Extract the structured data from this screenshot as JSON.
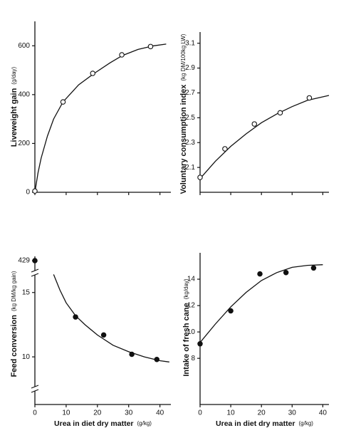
{
  "chart_data": [
    {
      "type": "scatter",
      "ylabel": "Liveweight gain",
      "ylabel_unit": "(g/day)",
      "marker": "open",
      "x": [
        0,
        9,
        18.5,
        27.8,
        37
      ],
      "values": [
        5,
        370,
        487,
        563,
        597
      ],
      "fit": {
        "x": [
          0,
          1,
          2,
          4,
          6,
          9,
          14,
          19,
          24,
          28,
          33,
          38,
          42
        ],
        "y": [
          0,
          80,
          140,
          230,
          300,
          370,
          440,
          487,
          530,
          560,
          585,
          600,
          607
        ]
      },
      "xlim": [
        0,
        43.5
      ],
      "ylim": [
        0,
        700
      ],
      "yticks": [
        0,
        200,
        400,
        600
      ],
      "xticks": [
        0,
        10,
        20,
        30,
        40
      ],
      "xtick_labels": false
    },
    {
      "type": "scatter",
      "ylabel": "Voluntary consumption index",
      "ylabel_unit": "(kg DM/100kg LW)",
      "marker": "open",
      "x": [
        0,
        8.1,
        17.7,
        26.1,
        35.6
      ],
      "values": [
        2.02,
        2.25,
        2.45,
        2.54,
        2.66
      ],
      "fit": {
        "x": [
          0,
          5,
          10,
          15,
          20,
          25,
          30,
          35,
          42
        ],
        "y": [
          2.01,
          2.15,
          2.27,
          2.37,
          2.46,
          2.53,
          2.59,
          2.64,
          2.68
        ]
      },
      "xlim": [
        0,
        42
      ],
      "ylim": [
        1.9,
        3.19
      ],
      "yticks": [
        2.1,
        2.3,
        2.5,
        2.7,
        2.9,
        3.1
      ],
      "xticks": [
        0,
        10,
        20,
        30,
        40
      ],
      "xtick_labels": false
    },
    {
      "type": "scatter",
      "ylabel": "Feed conversion",
      "ylabel_unit": "(kg DM/kg gain)",
      "marker": "filled",
      "axis_break": true,
      "x": [
        0,
        13,
        22,
        31,
        39
      ],
      "values": [
        429,
        13.1,
        11.7,
        10.2,
        9.8
      ],
      "fit": {
        "x": [
          6,
          8,
          10,
          13,
          16,
          20,
          25,
          30,
          35,
          40,
          43
        ],
        "y": [
          16.4,
          15.2,
          14.2,
          13.2,
          12.5,
          11.7,
          10.9,
          10.4,
          10.0,
          9.7,
          9.6
        ]
      },
      "xlim": [
        0,
        43.5
      ],
      "ylim": [
        6.3,
        16.7
      ],
      "yticks": [
        10,
        15,
        429
      ],
      "xticks": [
        0,
        10,
        20,
        30,
        40
      ],
      "xtick_labels": true,
      "xlabel": "Urea in diet dry matter",
      "xlabel_unit": "(g/kg)"
    },
    {
      "type": "scatter",
      "ylabel": "Intake of fresh cane",
      "ylabel_unit": "(kg/day)",
      "marker": "filled",
      "x": [
        0,
        10,
        19.5,
        28,
        37
      ],
      "values": [
        9.1,
        11.6,
        14.4,
        14.5,
        14.85
      ],
      "fit": {
        "x": [
          0,
          5,
          10,
          15,
          20,
          25,
          30,
          35,
          40
        ],
        "y": [
          9.2,
          10.6,
          11.9,
          13.0,
          13.9,
          14.5,
          14.9,
          15.05,
          15.1
        ]
      },
      "xlim": [
        0,
        42
      ],
      "ylim": [
        4.5,
        16
      ],
      "yticks": [
        8,
        10,
        12,
        14
      ],
      "xticks": [
        0,
        10,
        20,
        30,
        40
      ],
      "xtick_labels": true,
      "xlabel": "Urea in diet dry matter",
      "xlabel_unit": "(g/kg)"
    }
  ]
}
